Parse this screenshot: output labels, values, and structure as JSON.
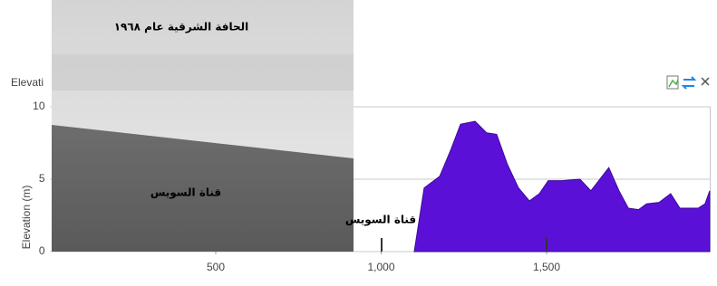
{
  "chart_data": {
    "type": "area",
    "title": "Elevati",
    "ylabel": "Elevation (m)",
    "x": [
      1100,
      1130,
      1177,
      1210,
      1240,
      1284,
      1319,
      1349,
      1382,
      1415,
      1448,
      1478,
      1505,
      1547,
      1601,
      1634,
      1688,
      1719,
      1747,
      1778,
      1802,
      1840,
      1875,
      1903,
      1958,
      1979,
      1993
    ],
    "values": [
      0,
      4.4,
      5.2,
      7,
      8.8,
      9,
      8.2,
      8.1,
      6,
      4.4,
      3.5,
      4,
      4.9,
      4.9,
      5,
      4.2,
      5.8,
      4.2,
      3,
      2.9,
      3.3,
      3.4,
      4,
      3,
      3,
      3.3,
      4.2
    ],
    "color": "#5b10d8",
    "xlim": [
      0,
      2000
    ],
    "ylim": [
      0,
      10
    ],
    "xticks": [
      500,
      {
        "value": 1000,
        "label": "1,000"
      },
      {
        "value": 1500,
        "label": "1,500"
      }
    ],
    "yticks": [
      0,
      5,
      10
    ],
    "grid": true,
    "annotation": "قناة السويس",
    "photo": {
      "title": "الحافة الشرقية عام ١٩٦٨",
      "label": "قناة السويس"
    }
  }
}
